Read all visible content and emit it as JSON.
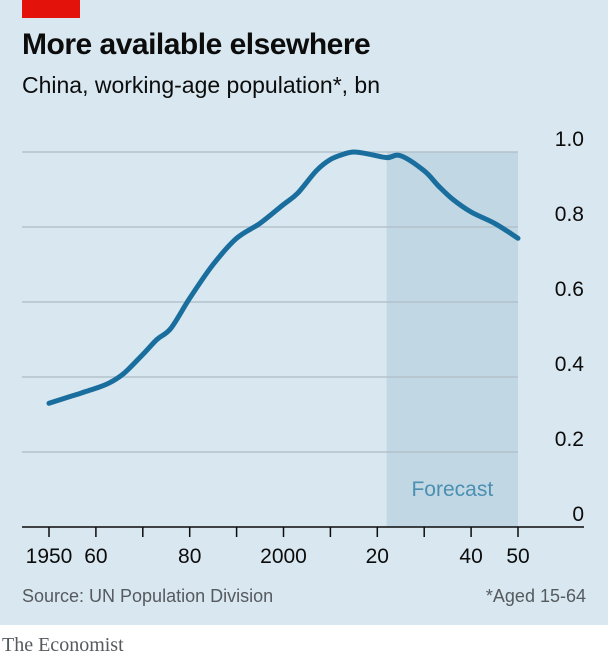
{
  "header": {
    "title": "More available elsewhere",
    "subtitle": "China, working-age population*, bn"
  },
  "footer": {
    "source": "Source: UN Population Division",
    "footnote": "*Aged 15-64",
    "brand": "The Economist"
  },
  "colors": {
    "background": "#d8e7f0",
    "line": "#1a6e9e",
    "forecast_band": "#c1d7e3",
    "gridline": "#b3c2cb",
    "accent": "#e3120b"
  },
  "chart_data": {
    "type": "line",
    "title": "More available elsewhere",
    "subtitle": "China, working-age population*, bn",
    "xlabel": "",
    "ylabel": "",
    "xlim": [
      1950,
      2050
    ],
    "ylim": [
      0,
      1.0
    ],
    "y_ticks": [
      0,
      0.2,
      0.4,
      0.6,
      0.8,
      1.0
    ],
    "y_tick_labels": [
      "0",
      "0.2",
      "0.4",
      "0.6",
      "0.8",
      "1.0"
    ],
    "x_ticks": [
      1950,
      1960,
      1980,
      2000,
      2020,
      2040,
      2050
    ],
    "x_tick_labels": [
      "1950",
      "60",
      "80",
      "2000",
      "20",
      "40",
      "50"
    ],
    "x_minor_ticks": [
      1970,
      1990,
      2010,
      2030
    ],
    "grid": true,
    "forecast": {
      "label": "Forecast",
      "start": 2022,
      "end": 2050
    },
    "series": [
      {
        "x": [
          1950,
          1955,
          1960,
          1963,
          1966,
          1970,
          1973,
          1976,
          1980,
          1985,
          1990,
          1995,
          2000,
          2003,
          2007,
          2010,
          2013,
          2015,
          2018,
          2022,
          2025,
          2030,
          2033,
          2036,
          2040,
          2045,
          2050
        ],
        "values": [
          0.33,
          0.35,
          0.37,
          0.385,
          0.41,
          0.46,
          0.5,
          0.53,
          0.61,
          0.7,
          0.77,
          0.81,
          0.86,
          0.89,
          0.95,
          0.98,
          0.995,
          1.0,
          0.995,
          0.985,
          0.99,
          0.95,
          0.91,
          0.875,
          0.84,
          0.81,
          0.77
        ]
      }
    ]
  }
}
